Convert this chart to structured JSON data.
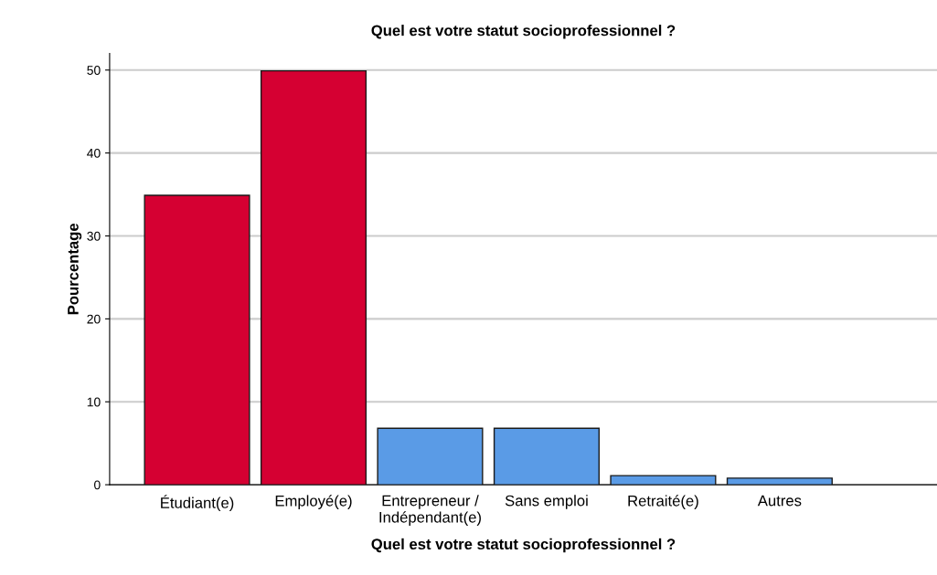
{
  "chart_data": {
    "type": "bar",
    "title": "Quel est votre statut socioprofessionnel ?",
    "xlabel": "Quel est votre statut socioprofessionnel ?",
    "ylabel": "Pourcentage",
    "categories": [
      "Étudiant(e)",
      "Employé(e)",
      "Entrepreneur /\nIndépendant(e)",
      "Sans emploi",
      "Retraité(e)",
      "Autres"
    ],
    "values": [
      34.9,
      49.9,
      6.8,
      6.8,
      1.1,
      0.8
    ],
    "colors": [
      "#d50032",
      "#d50032",
      "#5a9be6",
      "#5a9be6",
      "#5a9be6",
      "#5a9be6"
    ],
    "ylim": [
      0,
      52
    ],
    "yticks": [
      0,
      10,
      20,
      30,
      40,
      50
    ],
    "grid": "y",
    "legend": false
  }
}
